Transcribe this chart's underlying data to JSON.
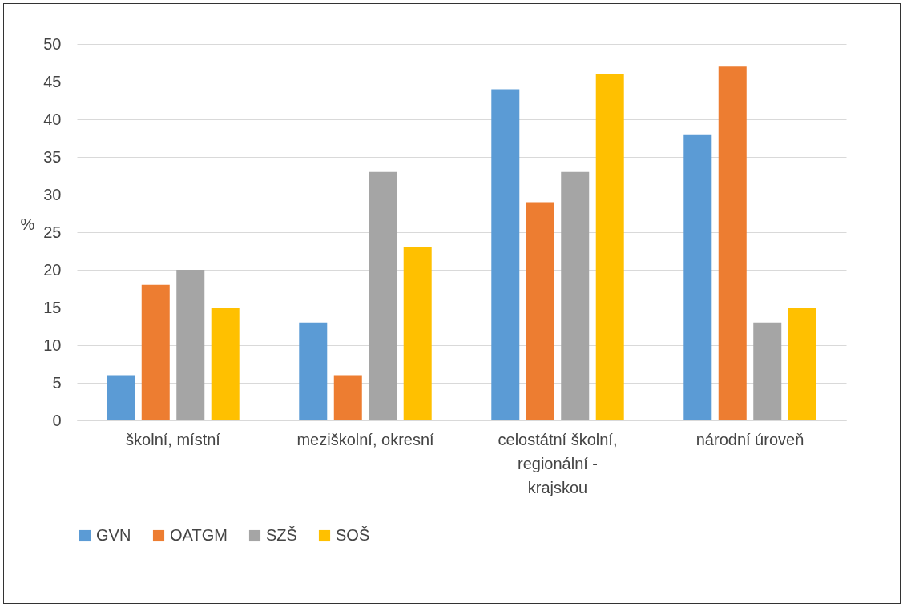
{
  "chart_data": {
    "type": "bar",
    "ylabel": "%",
    "categories": [
      "školní, místní",
      "meziškolní, okresní",
      "celostátní školní, regionální - krajskou",
      "národní úroveň"
    ],
    "series": [
      {
        "name": "GVN",
        "color": "#5b9bd5",
        "values": [
          6,
          13,
          44,
          38
        ]
      },
      {
        "name": "OATGM",
        "color": "#ed7d31",
        "values": [
          18,
          6,
          29,
          47
        ]
      },
      {
        "name": "SZŠ",
        "color": "#a5a5a5",
        "values": [
          20,
          33,
          33,
          13
        ]
      },
      {
        "name": "SOŠ",
        "color": "#ffc000",
        "values": [
          15,
          23,
          46,
          15
        ]
      }
    ],
    "ylim": [
      0,
      50
    ],
    "yticks": [
      0,
      5,
      10,
      15,
      20,
      25,
      30,
      35,
      40,
      45,
      50
    ],
    "grid": "y",
    "legend": "bottom"
  }
}
